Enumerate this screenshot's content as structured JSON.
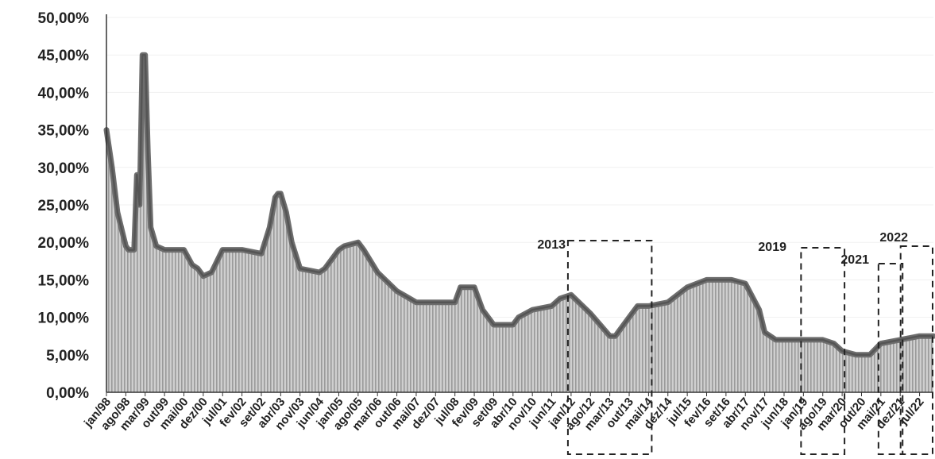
{
  "chart_data": {
    "type": "area",
    "x_tick_labels": [
      "jan/98",
      "ago/98",
      "mar/99",
      "out/99",
      "mai/00",
      "dez/00",
      "jul/01",
      "fev/02",
      "set/02",
      "abr/03",
      "nov/03",
      "jun/04",
      "jan/05",
      "ago/05",
      "mar/06",
      "out/06",
      "mai/07",
      "dez/07",
      "jul/08",
      "fev/09",
      "set/09",
      "abr/10",
      "nov/10",
      "jun/11",
      "jan/12",
      "ago/12",
      "mar/13",
      "out/13",
      "mai/14",
      "dez/14",
      "jul/15",
      "fev/16",
      "set/16",
      "abr/17",
      "nov/17",
      "jun/18",
      "jan/19",
      "ago/19",
      "mar/20",
      "out/20",
      "mai/21",
      "dez/21",
      "jul/22"
    ],
    "y_tick_labels": [
      "0,00%",
      "5,00%",
      "10,00%",
      "15,00%",
      "20,00%",
      "25,00%",
      "30,00%",
      "35,00%",
      "40,00%",
      "45,00%",
      "50,00%"
    ],
    "ylim": [
      0,
      50
    ],
    "series": [
      {
        "x": [
          "jan/98",
          "mar/98",
          "mai/98",
          "jul/98",
          "ago/98",
          "set/98",
          "out/98",
          "nov/98",
          "dez/98",
          "jan/99",
          "fev/99",
          "mar/99",
          "abr/99",
          "mai/99",
          "jul/99",
          "out/99",
          "jan/00",
          "mai/00",
          "ago/00",
          "out/00",
          "dez/00",
          "mar/01",
          "jul/01",
          "fev/02",
          "set/02",
          "dez/02",
          "fev/03",
          "mar/03",
          "abr/03",
          "jun/03",
          "ago/03",
          "nov/03",
          "jun/04",
          "ago/04",
          "jan/05",
          "mar/05",
          "ago/05",
          "out/05",
          "mar/06",
          "out/06",
          "mai/07",
          "dez/07",
          "jul/08",
          "set/08",
          "fev/09",
          "mai/09",
          "set/09",
          "abr/10",
          "jun/10",
          "nov/10",
          "jun/11",
          "set/11",
          "jan/12",
          "ago/12",
          "mar/13",
          "mai/13",
          "out/13",
          "jan/14",
          "mai/14",
          "dez/14",
          "jul/15",
          "fev/16",
          "set/16",
          "nov/16",
          "abr/17",
          "set/17",
          "nov/17",
          "mar/18",
          "jun/18",
          "jan/19",
          "ago/19",
          "dez/19",
          "mar/20",
          "ago/20",
          "out/20",
          "jan/21",
          "mai/21",
          "dez/21",
          "jul/22",
          "dez/22"
        ],
        "values": [
          35,
          30,
          24,
          21,
          19.5,
          19,
          19,
          19,
          29,
          25,
          45,
          45,
          32,
          22,
          19.5,
          19,
          19,
          19,
          17,
          16.5,
          15.5,
          16,
          19,
          19,
          18.5,
          22,
          26,
          26.5,
          26.5,
          24,
          20,
          16.5,
          16,
          16.5,
          19,
          19.5,
          20,
          19,
          16,
          13.5,
          12,
          12,
          12,
          14,
          14,
          11,
          9,
          9,
          10,
          11,
          11.5,
          12.5,
          13,
          10.5,
          7.5,
          7.5,
          10,
          11.5,
          11.5,
          12,
          14,
          15,
          15,
          15,
          14.5,
          11,
          8,
          7,
          7,
          7,
          7,
          6.5,
          5.5,
          5,
          5,
          5,
          6.5,
          7,
          7.5,
          7.5
        ]
      }
    ],
    "annotations": [
      "2013",
      "2019",
      "2021",
      "2022"
    ]
  }
}
